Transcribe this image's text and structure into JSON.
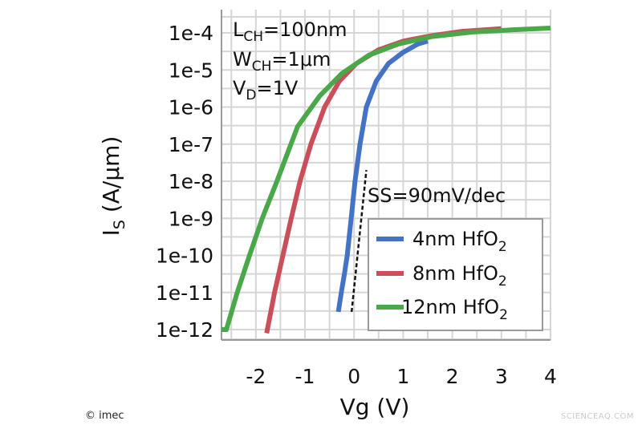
{
  "chart_data": {
    "type": "line",
    "title": "",
    "xlabel": "Vg (V)",
    "ylabel_main": "I",
    "ylabel_sub": "S",
    "ylabel_rest": " (A/μm)",
    "xlim": [
      -2.7,
      4
    ],
    "ylim": [
      1e-12,
      0.0001
    ],
    "yscale": "log",
    "grid": true,
    "x_ticks": [
      -2,
      -1,
      0,
      1,
      2,
      3,
      4
    ],
    "x_tick_labels": [
      "-2",
      "-1",
      "0",
      "1",
      "2",
      "3",
      "4"
    ],
    "y_ticks": [
      1e-12,
      1e-11,
      1e-10,
      1e-09,
      1e-08,
      1e-07,
      1e-06,
      1e-05,
      0.0001
    ],
    "y_tick_labels": [
      "1e-12",
      "1e-11",
      "1e-10",
      "1e-9",
      "1e-8",
      "1e-7",
      "1e-6",
      "1e-5",
      "1e-4"
    ],
    "legend_position": "bottom-right",
    "conditions": [
      {
        "main": "L",
        "sub": "CH",
        "rest": "=100nm"
      },
      {
        "main": "W",
        "sub": "CH",
        "rest": "=1μm"
      },
      {
        "main": "V",
        "sub": "D",
        "rest": "=1V"
      }
    ],
    "ss_annotation": {
      "label": "SS=90mV/dec",
      "x": [
        -0.05,
        0.25
      ],
      "y": [
        3e-12,
        2e-08
      ]
    },
    "series": [
      {
        "name": "4nm HfO",
        "name_sub": "2",
        "color": "#4472c4",
        "x": [
          -0.32,
          -0.26,
          -0.2,
          -0.14,
          -0.06,
          0.02,
          0.12,
          0.25,
          0.45,
          0.7,
          1.0,
          1.3,
          1.5
        ],
        "y": [
          3e-12,
          1e-11,
          3e-11,
          1e-10,
          1e-09,
          1e-08,
          1e-07,
          1e-06,
          5e-06,
          1.5e-05,
          3e-05,
          5e-05,
          6e-05
        ]
      },
      {
        "name": "8nm HfO",
        "name_sub": "2",
        "color": "#c9505a",
        "x": [
          -1.78,
          -1.62,
          -1.45,
          -1.28,
          -1.1,
          -0.88,
          -0.6,
          -0.3,
          0.05,
          0.5,
          1.0,
          1.6,
          2.2,
          3.0
        ],
        "y": [
          8e-13,
          1e-11,
          1e-10,
          1e-09,
          1e-08,
          1e-07,
          1e-06,
          5e-06,
          1.5e-05,
          3.5e-05,
          6e-05,
          8.5e-05,
          0.00011,
          0.00013
        ]
      },
      {
        "name": "12nm HfO",
        "name_sub": "2",
        "color": "#4aa84a",
        "x": [
          -2.7,
          -2.6,
          -2.38,
          -2.13,
          -1.87,
          -1.57,
          -1.15,
          -0.7,
          -0.25,
          0.3,
          0.9,
          1.6,
          2.4,
          3.2,
          4.0
        ],
        "y": [
          1e-12,
          1e-12,
          1e-11,
          1e-10,
          1e-09,
          1e-08,
          3e-07,
          2e-06,
          8e-06,
          2.5e-05,
          5e-05,
          8e-05,
          0.000105,
          0.00012,
          0.000135
        ]
      }
    ]
  },
  "credit": "© imec",
  "watermark": "SCIENCEAQ.COM"
}
